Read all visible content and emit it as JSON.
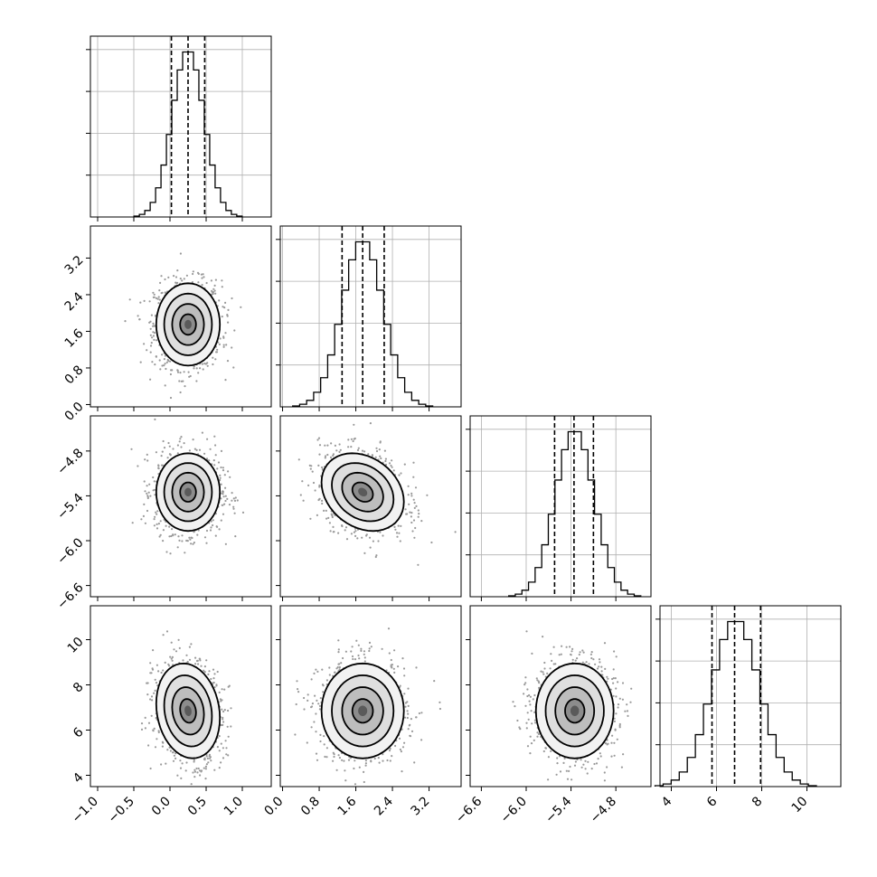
{
  "chart_data": {
    "type": "corner",
    "parameters": [
      {
        "name": "",
        "mean": 0.25,
        "sd": 0.22,
        "quantiles": [
          0.02,
          0.25,
          0.48
        ],
        "range": [
          -1.1,
          1.4
        ],
        "ticks": [
          -1.0,
          -0.5,
          0.0,
          0.5,
          1.0
        ],
        "tick_labels": [
          "−1.0",
          "−0.5",
          "0.0",
          "0.5",
          "1.0"
        ]
      },
      {
        "name": "",
        "mean": 1.75,
        "sd": 0.45,
        "quantiles": [
          1.3,
          1.75,
          2.22
        ],
        "range": [
          -0.05,
          3.9
        ],
        "ticks": [
          0.0,
          0.8,
          1.6,
          2.4,
          3.2
        ],
        "tick_labels": [
          "0.0",
          "0.8",
          "1.6",
          "2.4",
          "3.2"
        ]
      },
      {
        "name": "",
        "mean": -5.35,
        "sd": 0.26,
        "quantiles": [
          -5.62,
          -5.36,
          -5.1
        ],
        "range": [
          -6.75,
          -4.33
        ],
        "ticks": [
          -6.6,
          -6.0,
          -5.4,
          -4.8
        ],
        "tick_labels": [
          "−6.6",
          "−6.0",
          "−5.4",
          "−4.8"
        ]
      },
      {
        "name": "",
        "mean": 6.85,
        "sd": 1.05,
        "quantiles": [
          5.8,
          6.8,
          7.95
        ],
        "range": [
          3.5,
          11.5
        ],
        "ticks": [
          4,
          6,
          8,
          10
        ],
        "tick_labels": [
          "4",
          "6",
          "8",
          "10"
        ]
      }
    ],
    "correlations": [
      [
        1.0,
        0.0,
        0.0,
        -0.15
      ],
      [
        0.0,
        1.0,
        -0.25,
        0.0
      ],
      [
        0.0,
        -0.25,
        1.0,
        0.0
      ],
      [
        -0.15,
        0.0,
        0.0,
        1.0
      ]
    ],
    "contour_levels_sigma": [
      0.5,
      1.0,
      1.5,
      2.0
    ],
    "histogram_bins": 20,
    "grid": true,
    "colors": {
      "line": "#000000",
      "points": "#9a9a9a",
      "grid": "#b0b0b0",
      "background": "#ffffff"
    }
  }
}
